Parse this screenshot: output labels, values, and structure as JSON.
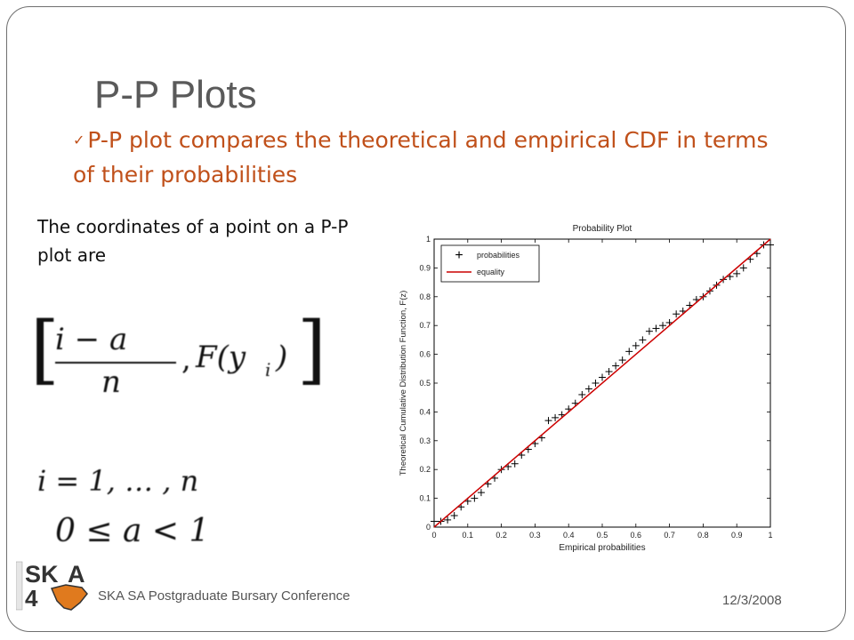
{
  "slide": {
    "title": "P-P Plots",
    "bullet_check": "✓",
    "bullet": "P-P plot compares the theoretical and empirical CDF in terms of their probabilities",
    "body_text": "The coordinates of a point on a P-P plot are",
    "footer_text": "SKA SA Postgraduate Bursary Conference",
    "date": "12/3/2008",
    "logo": {
      "text_top": "SK",
      "text_bottom": "A"
    }
  },
  "formula": {
    "open_bracket": "[",
    "numerator": "i − a",
    "denominator": "n",
    "comma": ",",
    "function": "F(y",
    "subscript": "i",
    "close_paren": ")",
    "close_bracket": "]",
    "index_line": "i = 1, … , n",
    "constraint_line": "0 ≤ a  < 1"
  },
  "chart_data": {
    "type": "line",
    "title": "Probability Plot",
    "xlabel": "Empirical probabilities",
    "ylabel": "Theoretical Cumulative Distribution Function, F(z)",
    "xlim": [
      0,
      1
    ],
    "ylim": [
      0,
      1
    ],
    "xticks": [
      "0",
      "0.1",
      "0.2",
      "0.3",
      "0.4",
      "0.5",
      "0.6",
      "0.7",
      "0.8",
      "0.9",
      "1"
    ],
    "yticks": [
      "0",
      "0.1",
      "0.2",
      "0.3",
      "0.4",
      "0.5",
      "0.6",
      "0.7",
      "0.8",
      "0.9",
      "1"
    ],
    "legend_position": "top-left",
    "grid": false,
    "series": [
      {
        "name": "probabilities",
        "marker": "+",
        "color": "#000000",
        "points": [
          [
            0.0,
            0.02
          ],
          [
            0.02,
            0.02
          ],
          [
            0.04,
            0.025
          ],
          [
            0.06,
            0.04
          ],
          [
            0.08,
            0.07
          ],
          [
            0.1,
            0.09
          ],
          [
            0.12,
            0.1
          ],
          [
            0.14,
            0.12
          ],
          [
            0.16,
            0.15
          ],
          [
            0.18,
            0.17
          ],
          [
            0.2,
            0.2
          ],
          [
            0.22,
            0.21
          ],
          [
            0.24,
            0.22
          ],
          [
            0.26,
            0.25
          ],
          [
            0.28,
            0.27
          ],
          [
            0.3,
            0.29
          ],
          [
            0.32,
            0.31
          ],
          [
            0.34,
            0.37
          ],
          [
            0.36,
            0.38
          ],
          [
            0.38,
            0.39
          ],
          [
            0.4,
            0.41
          ],
          [
            0.42,
            0.43
          ],
          [
            0.44,
            0.46
          ],
          [
            0.46,
            0.48
          ],
          [
            0.48,
            0.5
          ],
          [
            0.5,
            0.52
          ],
          [
            0.52,
            0.54
          ],
          [
            0.54,
            0.56
          ],
          [
            0.56,
            0.58
          ],
          [
            0.58,
            0.61
          ],
          [
            0.6,
            0.63
          ],
          [
            0.62,
            0.65
          ],
          [
            0.64,
            0.68
          ],
          [
            0.66,
            0.69
          ],
          [
            0.68,
            0.7
          ],
          [
            0.7,
            0.71
          ],
          [
            0.72,
            0.74
          ],
          [
            0.74,
            0.75
          ],
          [
            0.76,
            0.77
          ],
          [
            0.78,
            0.79
          ],
          [
            0.8,
            0.8
          ],
          [
            0.82,
            0.82
          ],
          [
            0.84,
            0.84
          ],
          [
            0.86,
            0.86
          ],
          [
            0.88,
            0.87
          ],
          [
            0.9,
            0.88
          ],
          [
            0.92,
            0.9
          ],
          [
            0.94,
            0.93
          ],
          [
            0.96,
            0.95
          ],
          [
            0.98,
            0.98
          ],
          [
            1.0,
            0.98
          ]
        ]
      },
      {
        "name": "equality",
        "color": "#cc0000",
        "points": [
          [
            0,
            0
          ],
          [
            1,
            1
          ]
        ]
      }
    ]
  },
  "colors": {
    "title": "#5a5a5a",
    "bullet": "#c0501a",
    "frame": "#6f6f6f",
    "equality_line": "#cc0000",
    "logo_dark": "#333333",
    "logo_orange": "#e07a1e"
  }
}
